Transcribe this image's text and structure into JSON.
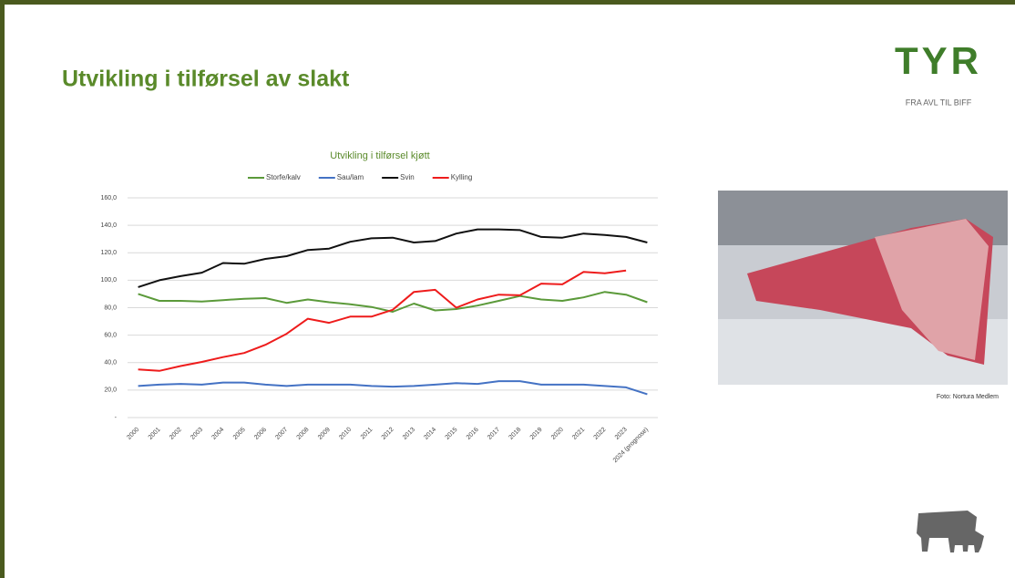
{
  "slide": {
    "title": "Utvikling i tilførsel av slakt",
    "logo": "TYR",
    "tagline": "FRA AVL TIL BIFF",
    "photo_caption": "Foto: Nortura Medlem"
  },
  "chart_data": {
    "type": "line",
    "title": "Utvikling i tilførsel kjøtt",
    "categories": [
      "2000",
      "2001",
      "2002",
      "2003",
      "2004",
      "2005",
      "2006",
      "2007",
      "2008",
      "2009",
      "2010",
      "2011",
      "2012",
      "2013",
      "2014",
      "2015",
      "2016",
      "2017",
      "2018",
      "2019",
      "2020",
      "2021",
      "2022",
      "2023",
      "2024 (prognose)"
    ],
    "series": [
      {
        "name": "Storfe/kalv",
        "color": "#5b9a3a",
        "values": [
          90,
          85,
          85,
          84.5,
          85.5,
          86.5,
          87,
          83.5,
          86,
          84,
          82.5,
          80.5,
          77,
          83,
          78,
          79,
          81.5,
          85,
          88.5,
          86,
          85,
          87.5,
          91.5,
          89.5,
          84
        ]
      },
      {
        "name": "Sau/lam",
        "color": "#4472c4",
        "values": [
          23,
          24,
          24.5,
          24,
          25.5,
          25.5,
          24,
          23,
          24,
          24,
          24,
          23,
          22.5,
          23,
          24,
          25,
          24.5,
          26.5,
          26.5,
          24,
          24,
          24,
          23,
          22,
          17
        ]
      },
      {
        "name": "Svin",
        "color": "#111111",
        "values": [
          95,
          100,
          103,
          105.5,
          112.5,
          112,
          115.5,
          117.5,
          122,
          123,
          128,
          130.5,
          131,
          127.5,
          128.5,
          134,
          137,
          137,
          136.5,
          131.5,
          131,
          134,
          133,
          131.5,
          127.5
        ]
      },
      {
        "name": "Kylling",
        "color": "#ee1c1c",
        "values": [
          35,
          34,
          37.5,
          40.5,
          44,
          47,
          53,
          61,
          72,
          69,
          73.5,
          73.5,
          78.5,
          91.5,
          93,
          80,
          86,
          89.5,
          89,
          97.5,
          97,
          106,
          105,
          107,
          null
        ]
      }
    ],
    "ylim": [
      0,
      160
    ],
    "yticks": [
      {
        "value": 0,
        "label": "-"
      },
      {
        "value": 20,
        "label": "20,0"
      },
      {
        "value": 40,
        "label": "40,0"
      },
      {
        "value": 60,
        "label": "60,0"
      },
      {
        "value": 80,
        "label": "80,0"
      },
      {
        "value": 100,
        "label": "100,0"
      },
      {
        "value": 120,
        "label": "120,0"
      },
      {
        "value": 140,
        "label": "140,0"
      },
      {
        "value": 160,
        "label": "160,0"
      }
    ],
    "grid": true,
    "legend": "top"
  }
}
